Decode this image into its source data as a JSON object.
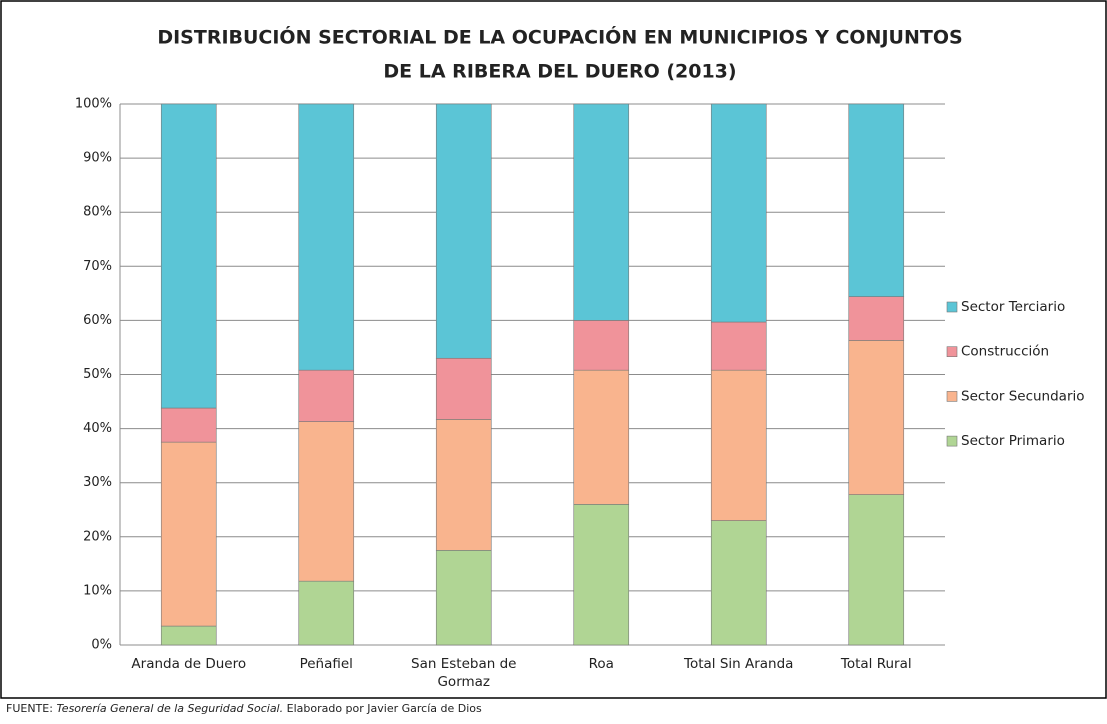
{
  "chart_data": {
    "type": "stacked_bar",
    "title": [
      "DISTRIBUCIÓN SECTORIAL DE LA OCUPACIÓN EN MUNICIPIOS Y CONJUNTOS",
      "DE LA RIBERA DEL DUERO (2013)"
    ],
    "categories": [
      "Aranda de Duero",
      "Peñafiel",
      "San Esteban de Gormaz",
      "Roa",
      "Total Sin Aranda",
      "Total Rural"
    ],
    "series": [
      {
        "name": "Sector Primario",
        "color": "#b0d594",
        "values": [
          3.5,
          11.8,
          17.5,
          26,
          23,
          27.8
        ]
      },
      {
        "name": "Sector Secundario",
        "color": "#f9b48e",
        "values": [
          34,
          29.5,
          24.2,
          24.8,
          27.8,
          28.5
        ]
      },
      {
        "name": "Construcción",
        "color": "#f0939a",
        "values": [
          6.3,
          9.5,
          11.3,
          9.2,
          8.9,
          8.1
        ]
      },
      {
        "name": "Sector Terciario",
        "color": "#5bc5d6",
        "values": [
          56.2,
          49.2,
          47,
          40,
          40.3,
          35.6
        ]
      }
    ],
    "ylim": [
      0,
      100
    ],
    "yticks": [
      {
        "value": 0,
        "label": "0%"
      },
      {
        "value": 10,
        "label": "10%"
      },
      {
        "value": 20,
        "label": "20%"
      },
      {
        "value": 30,
        "label": "30%"
      },
      {
        "value": 40,
        "label": "40%"
      },
      {
        "value": 50,
        "label": "50%"
      },
      {
        "value": 60,
        "label": "60%"
      },
      {
        "value": 70,
        "label": "70%"
      },
      {
        "value": 80,
        "label": "80%"
      },
      {
        "value": 90,
        "label": "90%"
      },
      {
        "value": 100,
        "label": "100%"
      }
    ],
    "grid": true,
    "legend": "right",
    "source": {
      "prefix": "FUENTE:",
      "italic": "Tesorería General de la Seguridad Social.",
      "suffix": "Elaborado por Javier García de Dios"
    }
  }
}
